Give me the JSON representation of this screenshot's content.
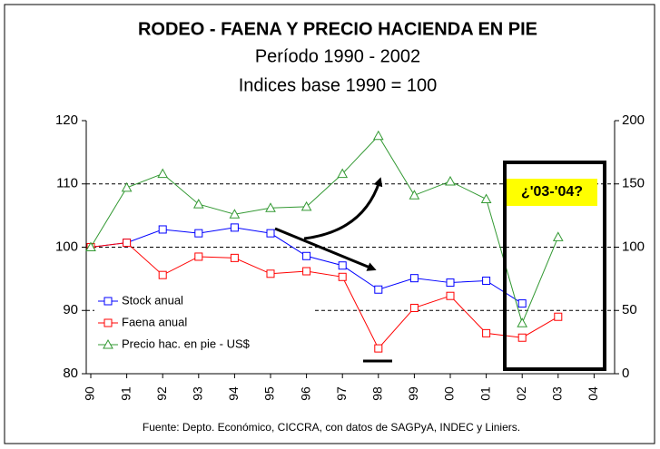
{
  "chart_data": {
    "type": "line",
    "title": "RODEO - FAENA Y PRECIO HACIENDA EN PIE",
    "subtitle": [
      "Período 1990 - 2002",
      "Indices base 1990 = 100"
    ],
    "categories": [
      "90",
      "91",
      "92",
      "93",
      "94",
      "95",
      "96",
      "97",
      "98",
      "99",
      "00",
      "01",
      "02",
      "03",
      "04"
    ],
    "series": [
      {
        "name": "Stock anual",
        "color": "#0000ff",
        "marker": "square",
        "values": [
          100,
          100.7,
          102.8,
          102.2,
          103.1,
          102.2,
          98.6,
          97.1,
          93.3,
          95.1,
          94.4,
          94.7,
          91.1,
          null,
          null
        ]
      },
      {
        "name": "Faena anual",
        "color": "#ff0000",
        "marker": "square",
        "values": [
          100,
          100.7,
          95.6,
          98.5,
          98.3,
          95.8,
          96.2,
          95.3,
          84,
          90.4,
          92.3,
          86.4,
          85.7,
          89,
          null
        ]
      },
      {
        "name": "Precio hac. en pie - US$",
        "color": "#339933",
        "marker": "triangle",
        "axis": "y2",
        "values": [
          100,
          147,
          158,
          134,
          126,
          131,
          132,
          158,
          188,
          141,
          152,
          138,
          40,
          108,
          null
        ]
      }
    ],
    "ylim": [
      80,
      120
    ],
    "yticks": [
      80,
      90,
      100,
      110,
      120
    ],
    "y2lim": [
      0,
      200
    ],
    "y2ticks": [
      0,
      50,
      100,
      150,
      200
    ],
    "grid": true,
    "legend": "lower left",
    "annotation": "¿'03-'04?",
    "source": "Fuente: Depto. Económico, CICCRA, con datos de SAGPyA, INDEC y Liniers."
  }
}
